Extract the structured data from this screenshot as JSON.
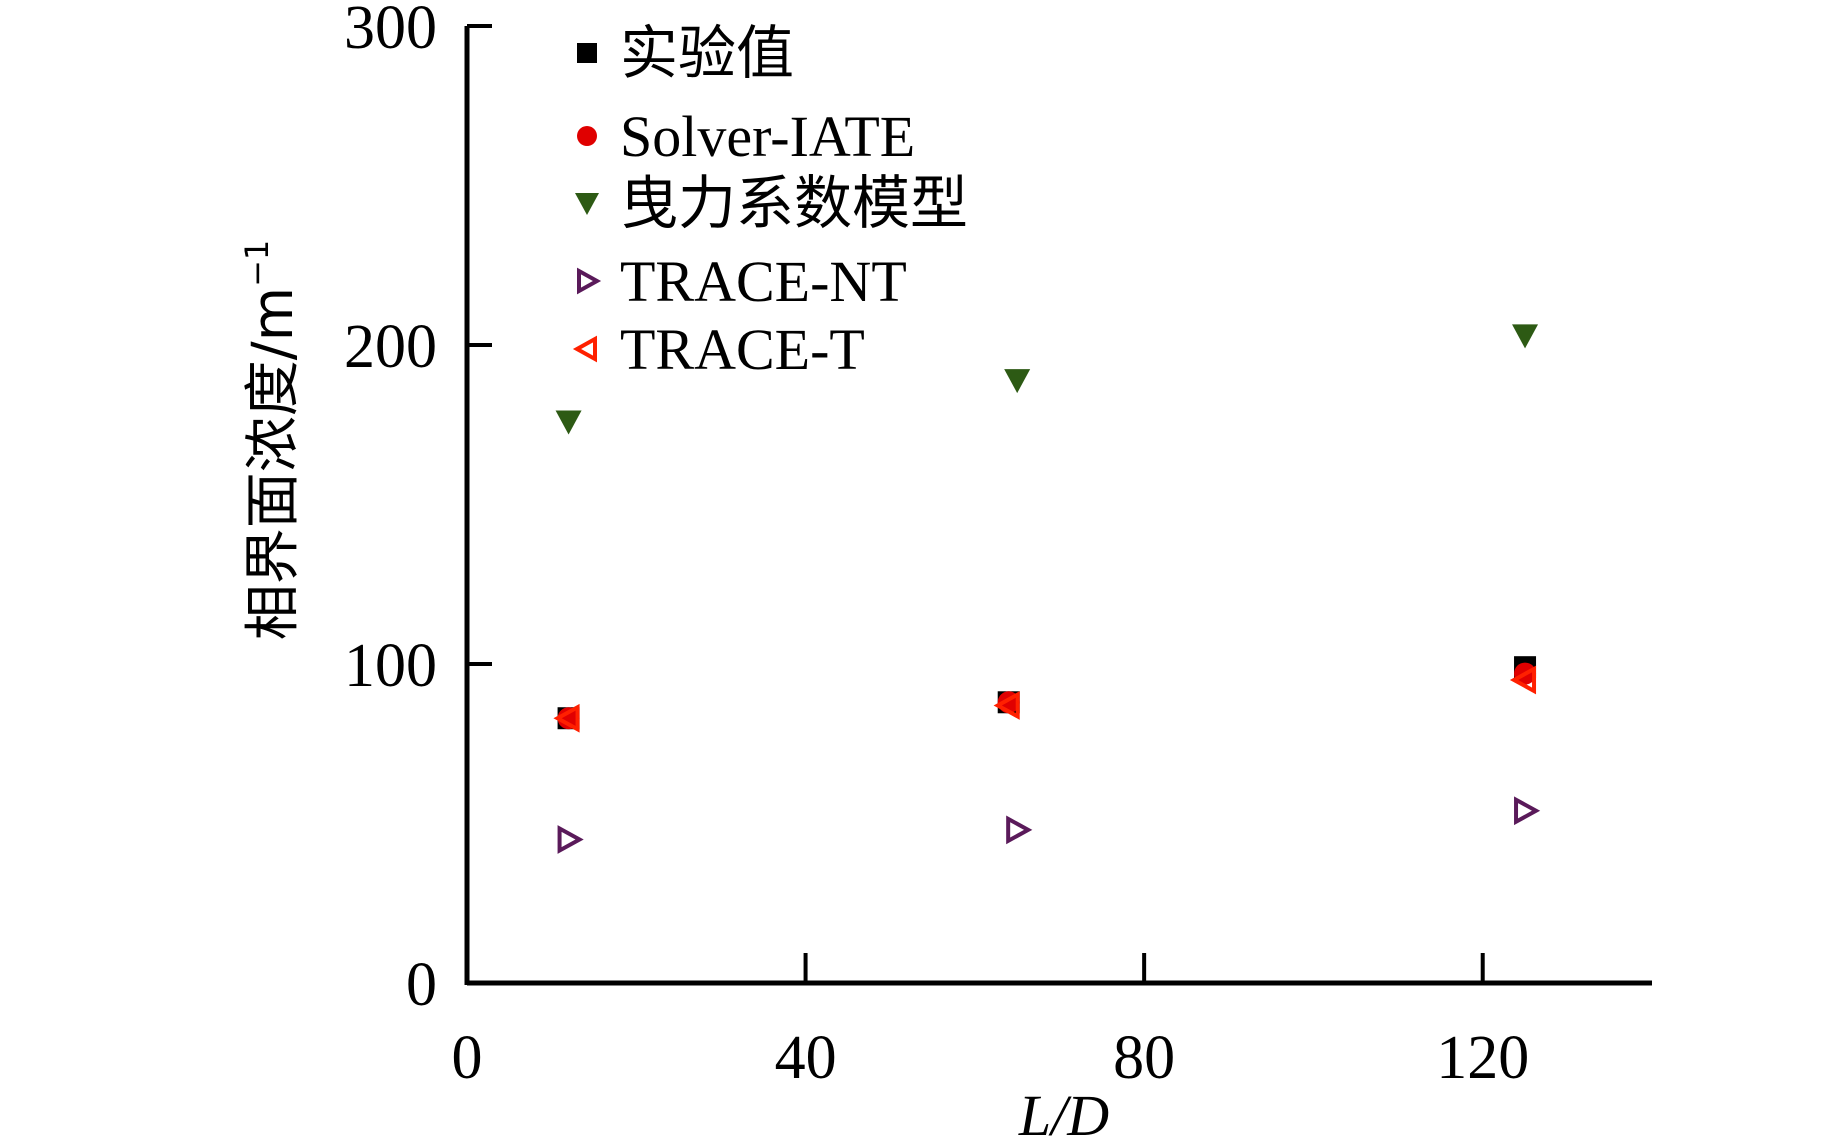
{
  "chart_data": {
    "type": "scatter",
    "title": "",
    "xlabel": "L/D",
    "ylabel": "相界面浓度/m",
    "ylabel_superscript": "−1",
    "xlim": [
      0,
      140
    ],
    "ylim": [
      0,
      300
    ],
    "xticks": [
      0,
      40,
      80,
      120
    ],
    "yticks": [
      0,
      100,
      200,
      300
    ],
    "grid": false,
    "legend_position": "top-left",
    "series": [
      {
        "name": "实验值",
        "marker": "square",
        "color": "#000000",
        "x": [
          12,
          64,
          125
        ],
        "y": [
          83,
          88,
          99
        ]
      },
      {
        "name": "Solver-IATE",
        "marker": "circle",
        "color": "#e00000",
        "x": [
          12,
          64,
          125
        ],
        "y": [
          83,
          88,
          97
        ]
      },
      {
        "name": "曳力系数模型",
        "marker": "triangle-down",
        "color": "#2d5a14",
        "x": [
          12,
          65,
          125
        ],
        "y": [
          176,
          189,
          203
        ]
      },
      {
        "name": "TRACE-NT",
        "marker": "triangle-right-open",
        "color": "#5a1a5a",
        "x": [
          12,
          65,
          125
        ],
        "y": [
          45,
          48,
          54
        ]
      },
      {
        "name": "TRACE-T",
        "marker": "triangle-left-open",
        "color": "#ff2000",
        "x": [
          12,
          64,
          125
        ],
        "y": [
          83,
          87,
          95
        ]
      }
    ]
  }
}
